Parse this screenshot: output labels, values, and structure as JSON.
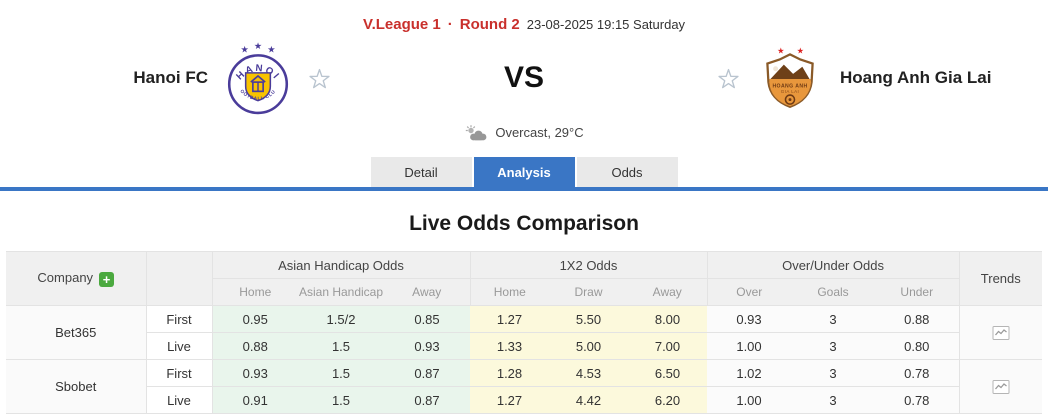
{
  "header": {
    "league": "V.League 1",
    "separator": "·",
    "round": "Round 2",
    "datetime": "23-08-2025 19:15 Saturday"
  },
  "match": {
    "home_team": "Hanoi FC",
    "away_team": "Hoang Anh Gia Lai",
    "vs_label": "VS",
    "weather": "Overcast, 29°C"
  },
  "icons": {
    "favorite": "star-outline",
    "weather": "sun-behind-cloud",
    "trends": "line-chart-in-box",
    "add_company": "plus-in-green-square"
  },
  "tabs": [
    {
      "label": "Detail",
      "active": false
    },
    {
      "label": "Analysis",
      "active": true
    },
    {
      "label": "Odds",
      "active": false
    }
  ],
  "section_title": "Live Odds Comparison",
  "odds_table": {
    "company_header": "Company",
    "add_button_label": "+",
    "trends_header": "Trends",
    "groups": [
      {
        "label": "Asian Handicap Odds",
        "columns": [
          "Home",
          "Asian Handicap",
          "Away"
        ]
      },
      {
        "label": "1X2 Odds",
        "columns": [
          "Home",
          "Draw",
          "Away"
        ]
      },
      {
        "label": "Over/Under Odds",
        "columns": [
          "Over",
          "Goals",
          "Under"
        ]
      }
    ],
    "companies": [
      {
        "name": "Bet365",
        "rows": [
          {
            "type": "First",
            "asian_handicap": [
              "0.95",
              "1.5/2",
              "0.85"
            ],
            "x12": [
              "1.27",
              "5.50",
              "8.00"
            ],
            "over_under": [
              "0.93",
              "3",
              "0.88"
            ]
          },
          {
            "type": "Live",
            "asian_handicap": [
              "0.88",
              "1.5",
              "0.93"
            ],
            "x12": [
              "1.33",
              "5.00",
              "7.00"
            ],
            "over_under": [
              "1.00",
              "3",
              "0.80"
            ]
          }
        ]
      },
      {
        "name": "Sbobet",
        "rows": [
          {
            "type": "First",
            "asian_handicap": [
              "0.93",
              "1.5",
              "0.87"
            ],
            "x12": [
              "1.28",
              "4.53",
              "6.50"
            ],
            "over_under": [
              "1.02",
              "3",
              "0.78"
            ]
          },
          {
            "type": "Live",
            "asian_handicap": [
              "0.91",
              "1.5",
              "0.87"
            ],
            "x12": [
              "1.27",
              "4.42",
              "6.20"
            ],
            "over_under": [
              "1.00",
              "3",
              "0.78"
            ]
          }
        ]
      }
    ]
  },
  "colors": {
    "accent_red": "#c9302c",
    "accent_blue": "#3a76c5",
    "green_cell": "#e9f5ec",
    "yellow_cell": "#fcf9dc",
    "header_bg": "#f0f0f0",
    "add_green": "#4ba93f"
  }
}
